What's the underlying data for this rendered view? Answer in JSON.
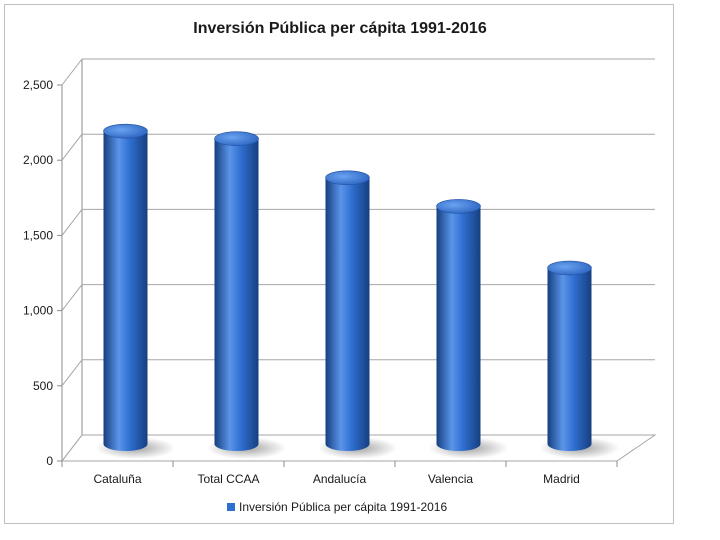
{
  "chart_data": {
    "type": "bar",
    "title": "Inversión Pública per cápita 1991-2016",
    "categories": [
      "Cataluña",
      "Total CCAA",
      "Andalucía",
      "Valencia",
      "Madrid"
    ],
    "series": [
      {
        "name": "Inversión Pública per cápita 1991-2016",
        "values": [
          2080,
          2030,
          1770,
          1580,
          1170
        ]
      }
    ],
    "ylim": [
      0,
      2500
    ],
    "yticks": [
      "0",
      "500",
      "1,000",
      "1,500",
      "2,000",
      "2,500"
    ],
    "ytick_values": [
      0,
      500,
      1000,
      1500,
      2000,
      2500
    ],
    "grid": true,
    "legend_position": "bottom",
    "bar_style": "3d-cylinder",
    "colors": {
      "bar": "#2f6fd0",
      "bar_dark": "#163f80",
      "bar_light": "#5b95ea",
      "grid": "#a6a6a6",
      "axis": "#8c8c8c"
    }
  }
}
